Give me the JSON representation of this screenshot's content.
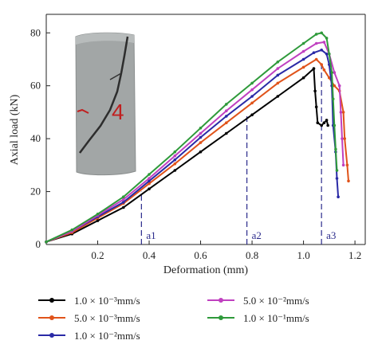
{
  "chart_data": {
    "type": "line",
    "xlabel": "Deformation (mm)",
    "ylabel": "Axial load (kN)",
    "xlim": [
      0,
      1.24
    ],
    "ylim": [
      0,
      87
    ],
    "x_ticks": [
      "0.2",
      "0.4",
      "0.6",
      "0.8",
      "1.0",
      "1.2"
    ],
    "y_ticks": [
      "0",
      "20",
      "40",
      "60",
      "80"
    ],
    "grid": false,
    "legend_position": "bottom",
    "series": [
      {
        "name": "1.0 × 10⁻³mm/s",
        "color": "#000000",
        "marker": "square",
        "points": [
          [
            0,
            1
          ],
          [
            0.1,
            4
          ],
          [
            0.2,
            9
          ],
          [
            0.3,
            14
          ],
          [
            0.4,
            21
          ],
          [
            0.5,
            28
          ],
          [
            0.6,
            35
          ],
          [
            0.7,
            42
          ],
          [
            0.8,
            49
          ],
          [
            0.9,
            56
          ],
          [
            1.0,
            63
          ],
          [
            1.04,
            66.5
          ],
          [
            1.045,
            58
          ],
          [
            1.05,
            52
          ],
          [
            1.055,
            46
          ],
          [
            1.07,
            45
          ],
          [
            1.08,
            46
          ],
          [
            1.09,
            47
          ],
          [
            1.095,
            45
          ]
        ]
      },
      {
        "name": "5.0 × 10⁻³mm/s",
        "color": "#e0531a",
        "marker": "circle",
        "points": [
          [
            0,
            1
          ],
          [
            0.1,
            4.5
          ],
          [
            0.2,
            10
          ],
          [
            0.3,
            15.5
          ],
          [
            0.4,
            23
          ],
          [
            0.5,
            30.5
          ],
          [
            0.6,
            38.5
          ],
          [
            0.7,
            46
          ],
          [
            0.8,
            53.5
          ],
          [
            0.9,
            61
          ],
          [
            1.0,
            67
          ],
          [
            1.05,
            70
          ],
          [
            1.07,
            68
          ],
          [
            1.08,
            66
          ],
          [
            1.1,
            63
          ],
          [
            1.12,
            60
          ],
          [
            1.14,
            58
          ],
          [
            1.155,
            50
          ],
          [
            1.16,
            40
          ],
          [
            1.17,
            30
          ],
          [
            1.175,
            24
          ]
        ]
      },
      {
        "name": "1.0 × 10⁻²mm/s",
        "color": "#2a2aa6",
        "marker": "triangle",
        "points": [
          [
            0,
            1
          ],
          [
            0.1,
            5
          ],
          [
            0.2,
            10.5
          ],
          [
            0.3,
            16
          ],
          [
            0.4,
            24
          ],
          [
            0.5,
            32
          ],
          [
            0.6,
            40.5
          ],
          [
            0.7,
            48.5
          ],
          [
            0.8,
            56
          ],
          [
            0.9,
            64
          ],
          [
            1.0,
            70
          ],
          [
            1.04,
            72.5
          ],
          [
            1.07,
            73.5
          ],
          [
            1.09,
            72
          ],
          [
            1.1,
            68
          ],
          [
            1.11,
            60
          ],
          [
            1.115,
            45
          ],
          [
            1.125,
            35
          ],
          [
            1.13,
            25
          ],
          [
            1.135,
            18
          ]
        ]
      },
      {
        "name": "5.0 × 10⁻²mm/s",
        "color": "#c040c0",
        "marker": "diamond",
        "points": [
          [
            0,
            1
          ],
          [
            0.1,
            5
          ],
          [
            0.2,
            11
          ],
          [
            0.3,
            17
          ],
          [
            0.4,
            25
          ],
          [
            0.5,
            33.5
          ],
          [
            0.6,
            42
          ],
          [
            0.7,
            50.5
          ],
          [
            0.8,
            58.5
          ],
          [
            0.9,
            66.5
          ],
          [
            1.0,
            73
          ],
          [
            1.05,
            76
          ],
          [
            1.08,
            76.5
          ],
          [
            1.1,
            72
          ],
          [
            1.12,
            65
          ],
          [
            1.14,
            60
          ],
          [
            1.145,
            50
          ],
          [
            1.15,
            40
          ],
          [
            1.155,
            30
          ]
        ]
      },
      {
        "name": "1.0 × 10⁻¹mm/s",
        "color": "#2e9a3a",
        "marker": "circle",
        "points": [
          [
            0,
            1
          ],
          [
            0.1,
            5.5
          ],
          [
            0.2,
            11.5
          ],
          [
            0.3,
            18
          ],
          [
            0.4,
            26.5
          ],
          [
            0.5,
            35
          ],
          [
            0.6,
            44
          ],
          [
            0.7,
            53
          ],
          [
            0.8,
            61
          ],
          [
            0.9,
            69
          ],
          [
            1.0,
            76
          ],
          [
            1.05,
            79.5
          ],
          [
            1.07,
            80
          ],
          [
            1.09,
            78
          ],
          [
            1.1,
            72
          ],
          [
            1.11,
            65
          ],
          [
            1.115,
            55
          ],
          [
            1.12,
            45
          ],
          [
            1.125,
            36
          ],
          [
            1.13,
            28
          ]
        ]
      }
    ],
    "annotations": [
      {
        "label": "a1",
        "x": 0.37
      },
      {
        "label": "a2",
        "x": 0.78
      },
      {
        "label": "a3",
        "x": 1.07
      }
    ],
    "marker_color": "#2b2b8c"
  },
  "inset": {
    "description_icon": "specimen-photo",
    "bg_color": "#9fa3a3",
    "mark_text": "4"
  }
}
